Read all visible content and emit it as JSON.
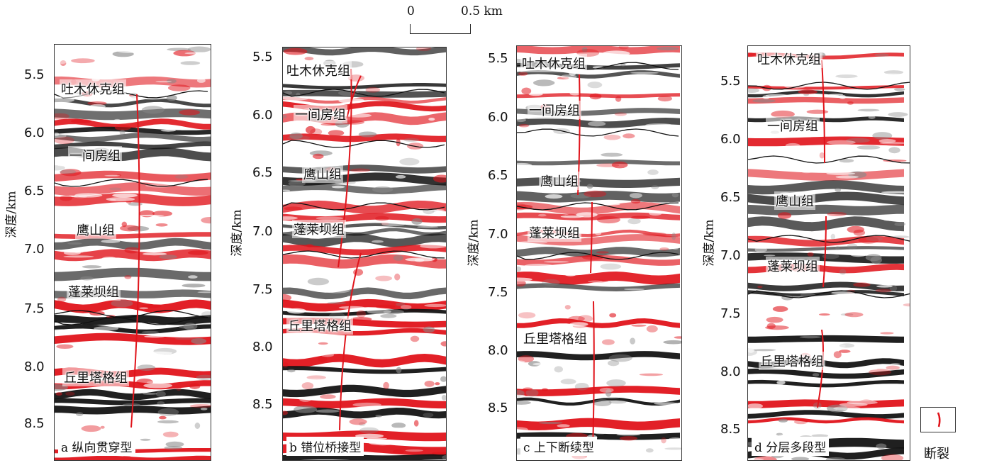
{
  "scale_bar": {
    "start": "0",
    "end": "0.5 km"
  },
  "y_axis_label": "深度/km",
  "legend": {
    "label": "断裂",
    "line_color": "#e0141b"
  },
  "colors": {
    "positive_amplitude": "#e0141b",
    "negative_amplitude": "#141414",
    "background": "#ffffff"
  },
  "panels": [
    {
      "caption": "a 纵向贯穿型",
      "ticks": [
        "5.5",
        "6.0",
        "6.5",
        "7.0",
        "7.5",
        "8.0",
        "8.5"
      ],
      "formations": [
        "吐木休克组",
        "一间房组",
        "鹰山组",
        "蓬莱坝组",
        "丘里塔格组"
      ]
    },
    {
      "caption": "b 错位桥接型",
      "ticks": [
        "5.5",
        "6.0",
        "6.5",
        "7.0",
        "7.5",
        "8.0",
        "8.5"
      ],
      "formations": [
        "吐木休克组",
        "一间房组",
        "鹰山组",
        "蓬莱坝组",
        "丘里塔格组"
      ]
    },
    {
      "caption": "c 上下断续型",
      "ticks": [
        "5.5",
        "6.0",
        "6.5",
        "7.0",
        "7.5",
        "8.0",
        "8.5"
      ],
      "formations": [
        "吐木休克组",
        "一间房组",
        "鹰山组",
        "蓬莱坝组",
        "丘里塔格组"
      ]
    },
    {
      "caption": "d 分层多段型",
      "ticks": [
        "5.5",
        "6.0",
        "6.5",
        "7.0",
        "7.5",
        "8.0",
        "8.5"
      ],
      "formations": [
        "吐木休克组",
        "一间房组",
        "鹰山组",
        "蓬莱坝组",
        "丘里塔格组"
      ]
    }
  ]
}
